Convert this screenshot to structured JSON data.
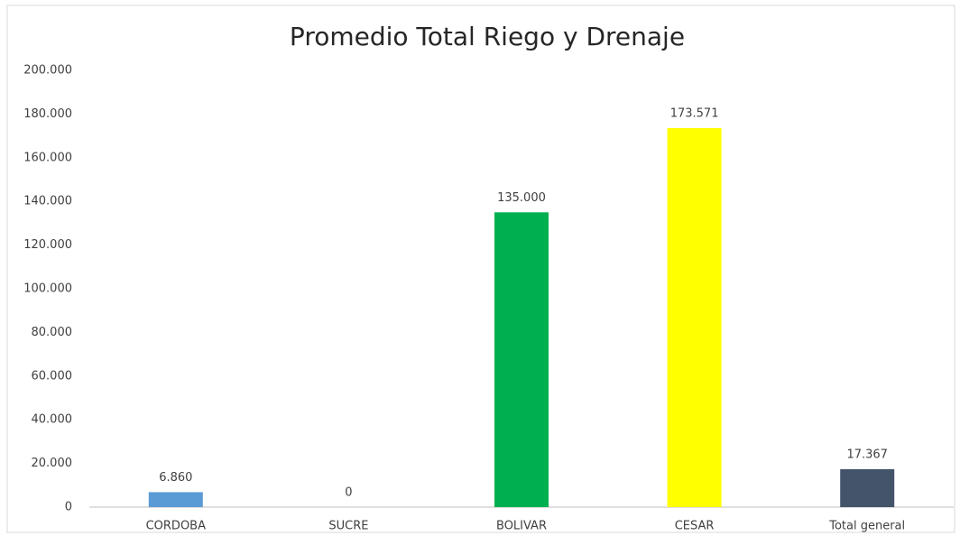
{
  "chart_data": {
    "type": "bar",
    "title": "Promedio Total Riego y Drenaje",
    "categories": [
      "CORDOBA",
      "SUCRE",
      "BOLIVAR",
      "CESAR",
      "Total general"
    ],
    "values": [
      6860,
      0,
      135000,
      173571,
      17367
    ],
    "value_labels": [
      "6.860",
      "0",
      "135.000",
      "173.571",
      "17.367"
    ],
    "colors": [
      "#5b9bd5",
      "#a5a5a5",
      "#00b050",
      "#ffff00",
      "#44546a"
    ],
    "ylim": [
      0,
      200000
    ],
    "yticks": [
      0,
      {
        "value": 20000,
        "label": "20.000"
      },
      {
        "value": 40000,
        "label": "40.000"
      },
      {
        "value": 60000,
        "label": "60.000"
      },
      {
        "value": 80000,
        "label": "80.000"
      },
      {
        "value": 100000,
        "label": "100.000"
      },
      {
        "value": 120000,
        "label": "120.000"
      },
      {
        "value": 140000,
        "label": "140.000"
      },
      {
        "value": 160000,
        "label": "160.000"
      },
      {
        "value": 180000,
        "label": "180.000"
      },
      {
        "value": 200000,
        "label": "200.000"
      }
    ],
    "grid": false
  }
}
